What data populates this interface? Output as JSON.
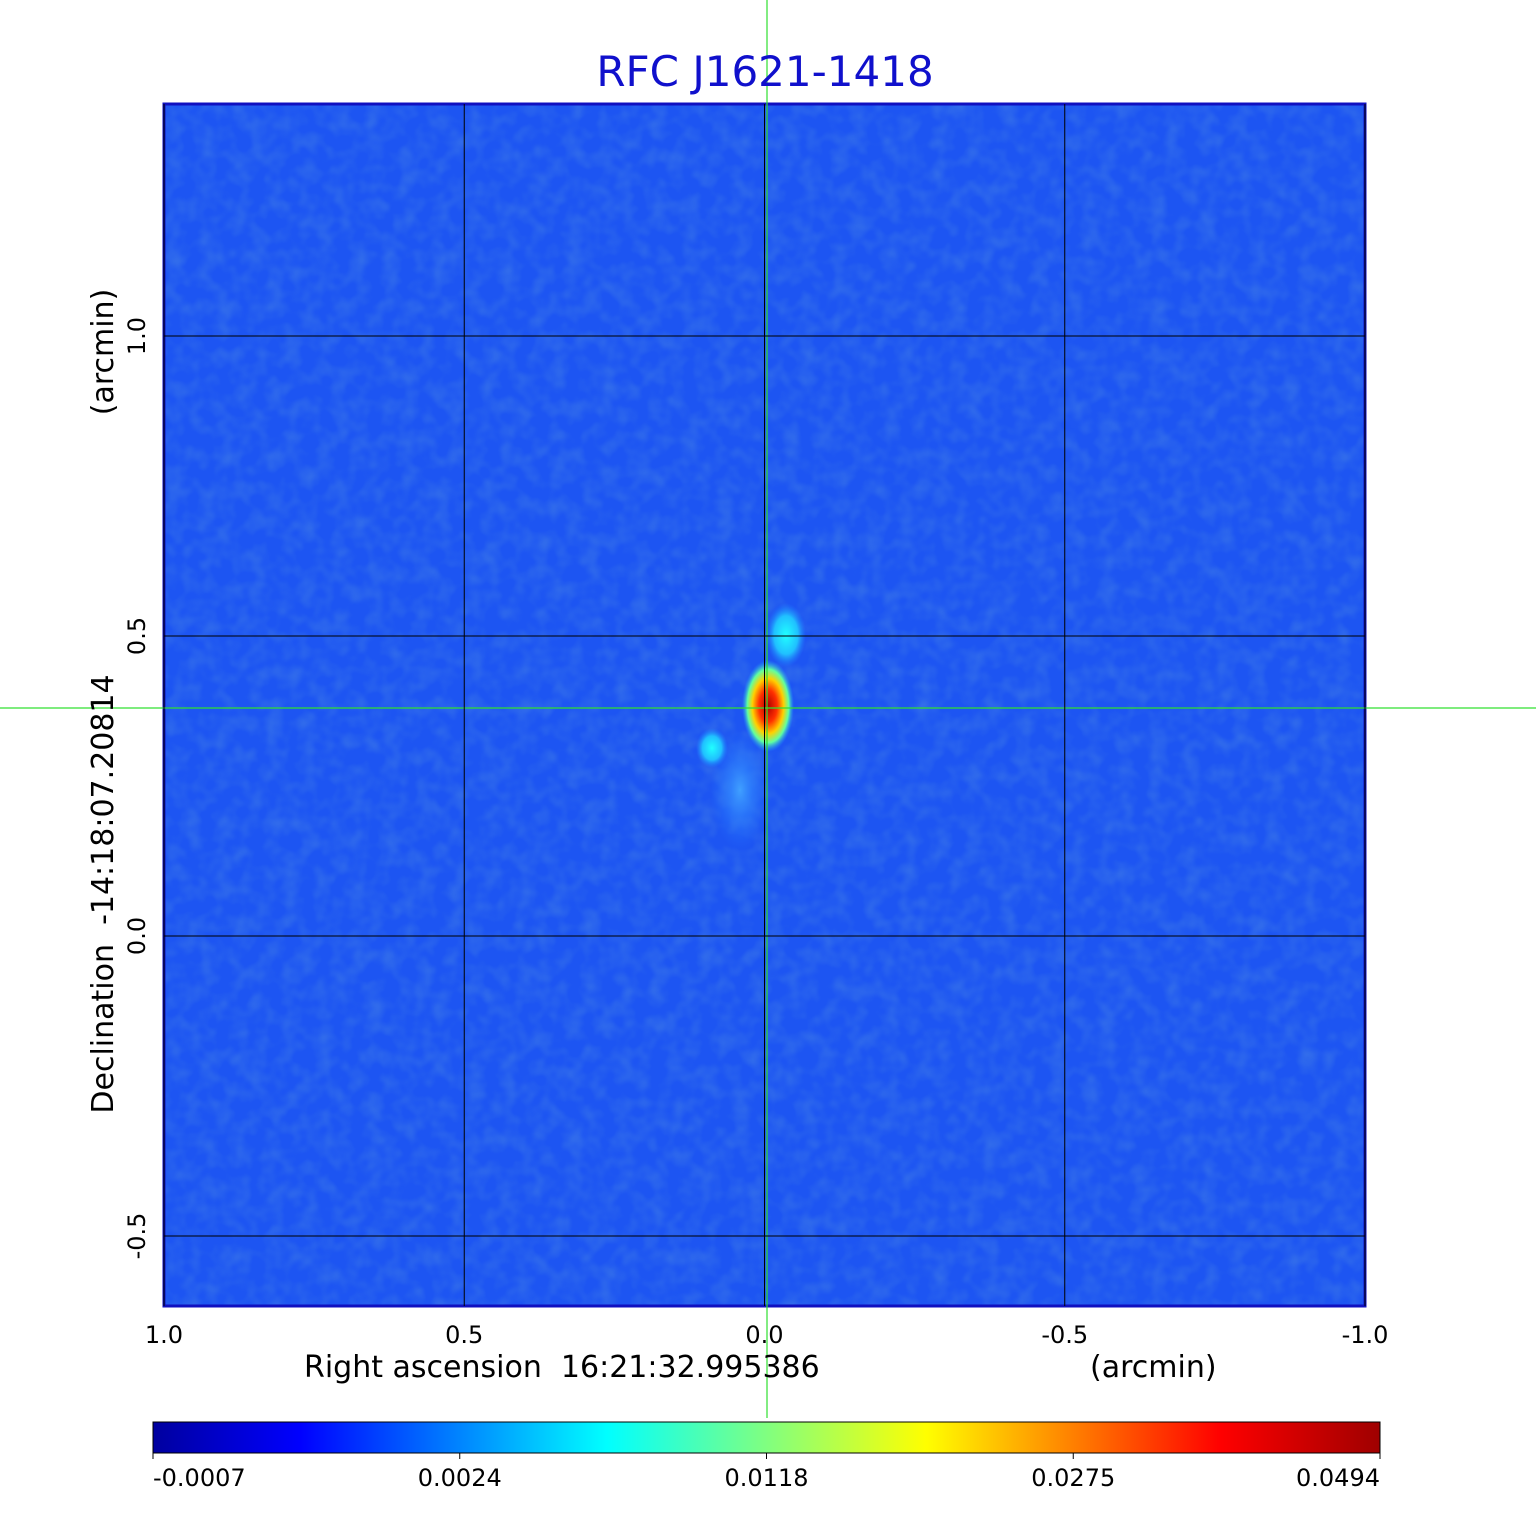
{
  "chart_data": {
    "type": "image",
    "title": "RFC J1621-1418",
    "xlabel": "Right ascension  16:21:32.995386",
    "xunit": "(arcmin)",
    "ylabel": "Declination  -14:18:07.20814",
    "yunit": "(arcmin)",
    "xlim": [
      1.0,
      -1.0
    ],
    "ylim": [
      -0.6167,
      1.3867
    ],
    "xticks": [
      {
        "value": 1.0,
        "label": "1.0"
      },
      0.5,
      {
        "value": 0.0,
        "label": "0.0"
      },
      -0.5,
      {
        "value": -1.0,
        "label": "-1.0"
      }
    ],
    "yticks": [
      -0.5,
      {
        "value": 0.0,
        "label": "0.0"
      },
      0.5,
      {
        "value": 1.0,
        "label": "1.0"
      }
    ],
    "grid": true,
    "colormap": "jet",
    "colorbar_ticks": [
      -0.0007,
      0.0024,
      0.0118,
      0.0275,
      0.0494
    ]
  }
}
